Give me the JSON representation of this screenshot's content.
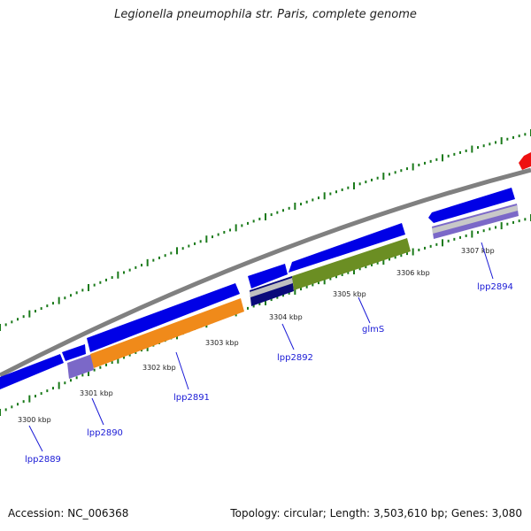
{
  "title": "Legionella pneumophila str. Paris, complete genome",
  "accession": "Accession: NC_006368",
  "summary": "Topology: circular; Length: 3,503,610 bp; Genes: 3,080",
  "kbp_labels": [
    "3300 kbp",
    "3301 kbp",
    "3302 kbp",
    "3303 kbp",
    "3304 kbp",
    "3305 kbp",
    "3306 kbp",
    "3307 kbp"
  ],
  "gene_labels": [
    "lpp2889",
    "lpp2890",
    "lpp2891",
    "lpp2892",
    "glmS",
    "lpp2894"
  ],
  "colors": {
    "backbone": "#808080",
    "gene_arrow": "#0000e6",
    "ticks": "#1a7a1a",
    "label": "#1a1ad6",
    "lpp2890_bar": "#7b68c8",
    "lpp2891_bar": "#f08a1a",
    "lpp2892_bar": "#0a0a7a",
    "glmS_bar": "#6b8e23",
    "lpp2894_bar": "#7b68c8",
    "top_feature": "#ee1111"
  }
}
